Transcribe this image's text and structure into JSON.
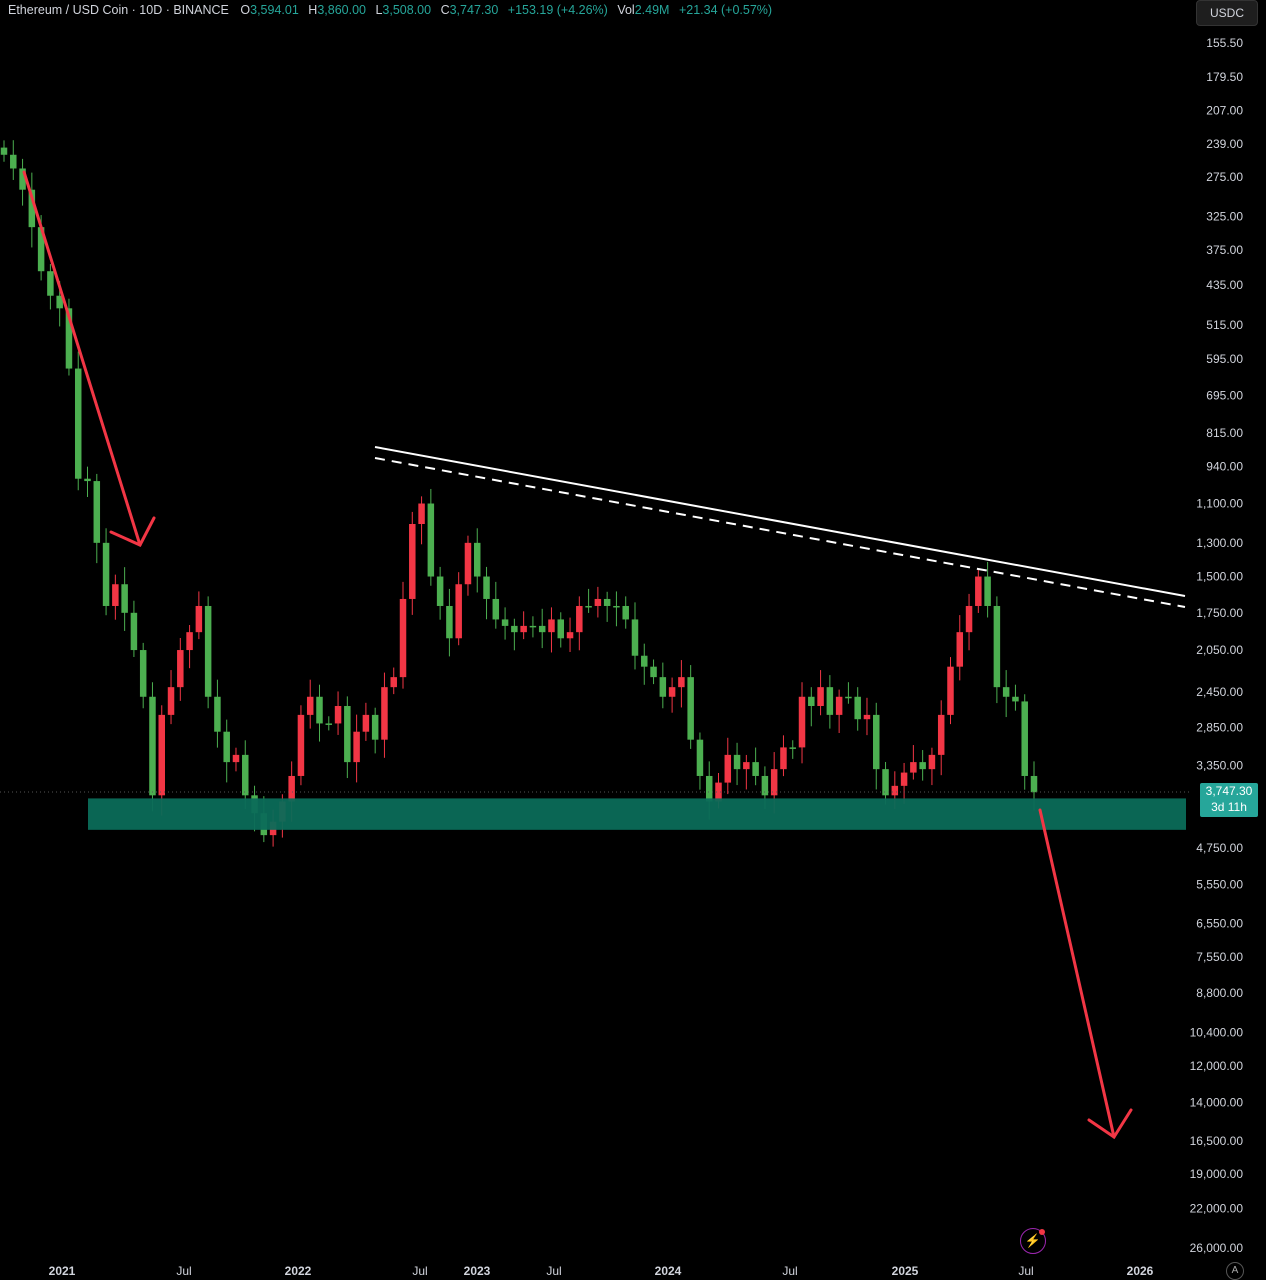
{
  "header": {
    "symbol": "Ethereum / USD Coin · 10D · BINANCE",
    "open_label": "O",
    "open": "3,594.01",
    "high_label": "H",
    "high": "3,860.00",
    "low_label": "L",
    "low": "3,508.00",
    "close_label": "C",
    "close": "3,747.30",
    "change": "+153.19 (+4.26%)",
    "vol_label": "Vol",
    "vol": "2.49M",
    "vol_change": "+21.34 (+0.57%)"
  },
  "currency_button": "USDC",
  "price_tag": {
    "price": "3,747.30",
    "countdown": "3d 11h"
  },
  "auto_button": "A",
  "colors": {
    "up": "#26a69a",
    "up_body": "#4caf50",
    "down": "#f23645",
    "zone": "#0b6b58",
    "arrow": "#f23645",
    "trendline": "#ffffff"
  },
  "chart_data": {
    "type": "candlestick",
    "scale": "inverted-log",
    "y_axis_labels": [
      "155.50",
      "179.50",
      "207.00",
      "239.00",
      "275.00",
      "325.00",
      "375.00",
      "435.00",
      "515.00",
      "595.00",
      "695.00",
      "815.00",
      "940.00",
      "1,100.00",
      "1,300.00",
      "1,500.00",
      "1,750.00",
      "2,050.00",
      "2,450.00",
      "2,850.00",
      "3,350.00",
      "4,750.00",
      "5,550.00",
      "6,550.00",
      "7,550.00",
      "8,800.00",
      "10,400.00",
      "12,000.00",
      "14,000.00",
      "16,500.00",
      "19,000.00",
      "22,000.00",
      "26,000.00"
    ],
    "x_axis_labels": [
      "2021",
      "Jul",
      "2022",
      "Jul",
      "2023",
      "Jul",
      "2024",
      "Jul",
      "2025",
      "Jul",
      "2026"
    ],
    "support_zone": [
      3850,
      4400
    ],
    "trendline_points": [
      [
        "2022-05",
        830
      ],
      [
        "2025-06",
        1750
      ]
    ],
    "last_close": 3747.3,
    "closes": [
      250,
      265,
      290,
      340,
      410,
      455,
      480,
      620,
      990,
      1000,
      1300,
      1700,
      1550,
      1750,
      2050,
      2500,
      3800,
      2700,
      2400,
      2050,
      1900,
      1700,
      2500,
      2900,
      3300,
      3200,
      3800,
      4100,
      4500,
      4250,
      3900,
      3500,
      2700,
      2500,
      2800,
      2800,
      2600,
      3300,
      2900,
      2700,
      3000,
      2400,
      2300,
      1650,
      1200,
      1100,
      1500,
      1700,
      1950,
      1550,
      1300,
      1500,
      1650,
      1800,
      1850,
      1900,
      1850,
      1850,
      1900,
      1800,
      1950,
      1900,
      1700,
      1700,
      1650,
      1700,
      1700,
      1800,
      2100,
      2200,
      2300,
      2500,
      2400,
      2300,
      3000,
      3500,
      3900,
      3600,
      3200,
      3400,
      3300,
      3500,
      3800,
      3400,
      3100,
      3100,
      2500,
      2600,
      2400,
      2700,
      2500,
      2500,
      2750,
      2700,
      3400,
      3800,
      3650,
      3450,
      3300,
      3400,
      3200,
      2700,
      2200,
      1900,
      1700,
      1500,
      1700,
      2400,
      2500,
      2550,
      3500,
      3750
    ]
  }
}
